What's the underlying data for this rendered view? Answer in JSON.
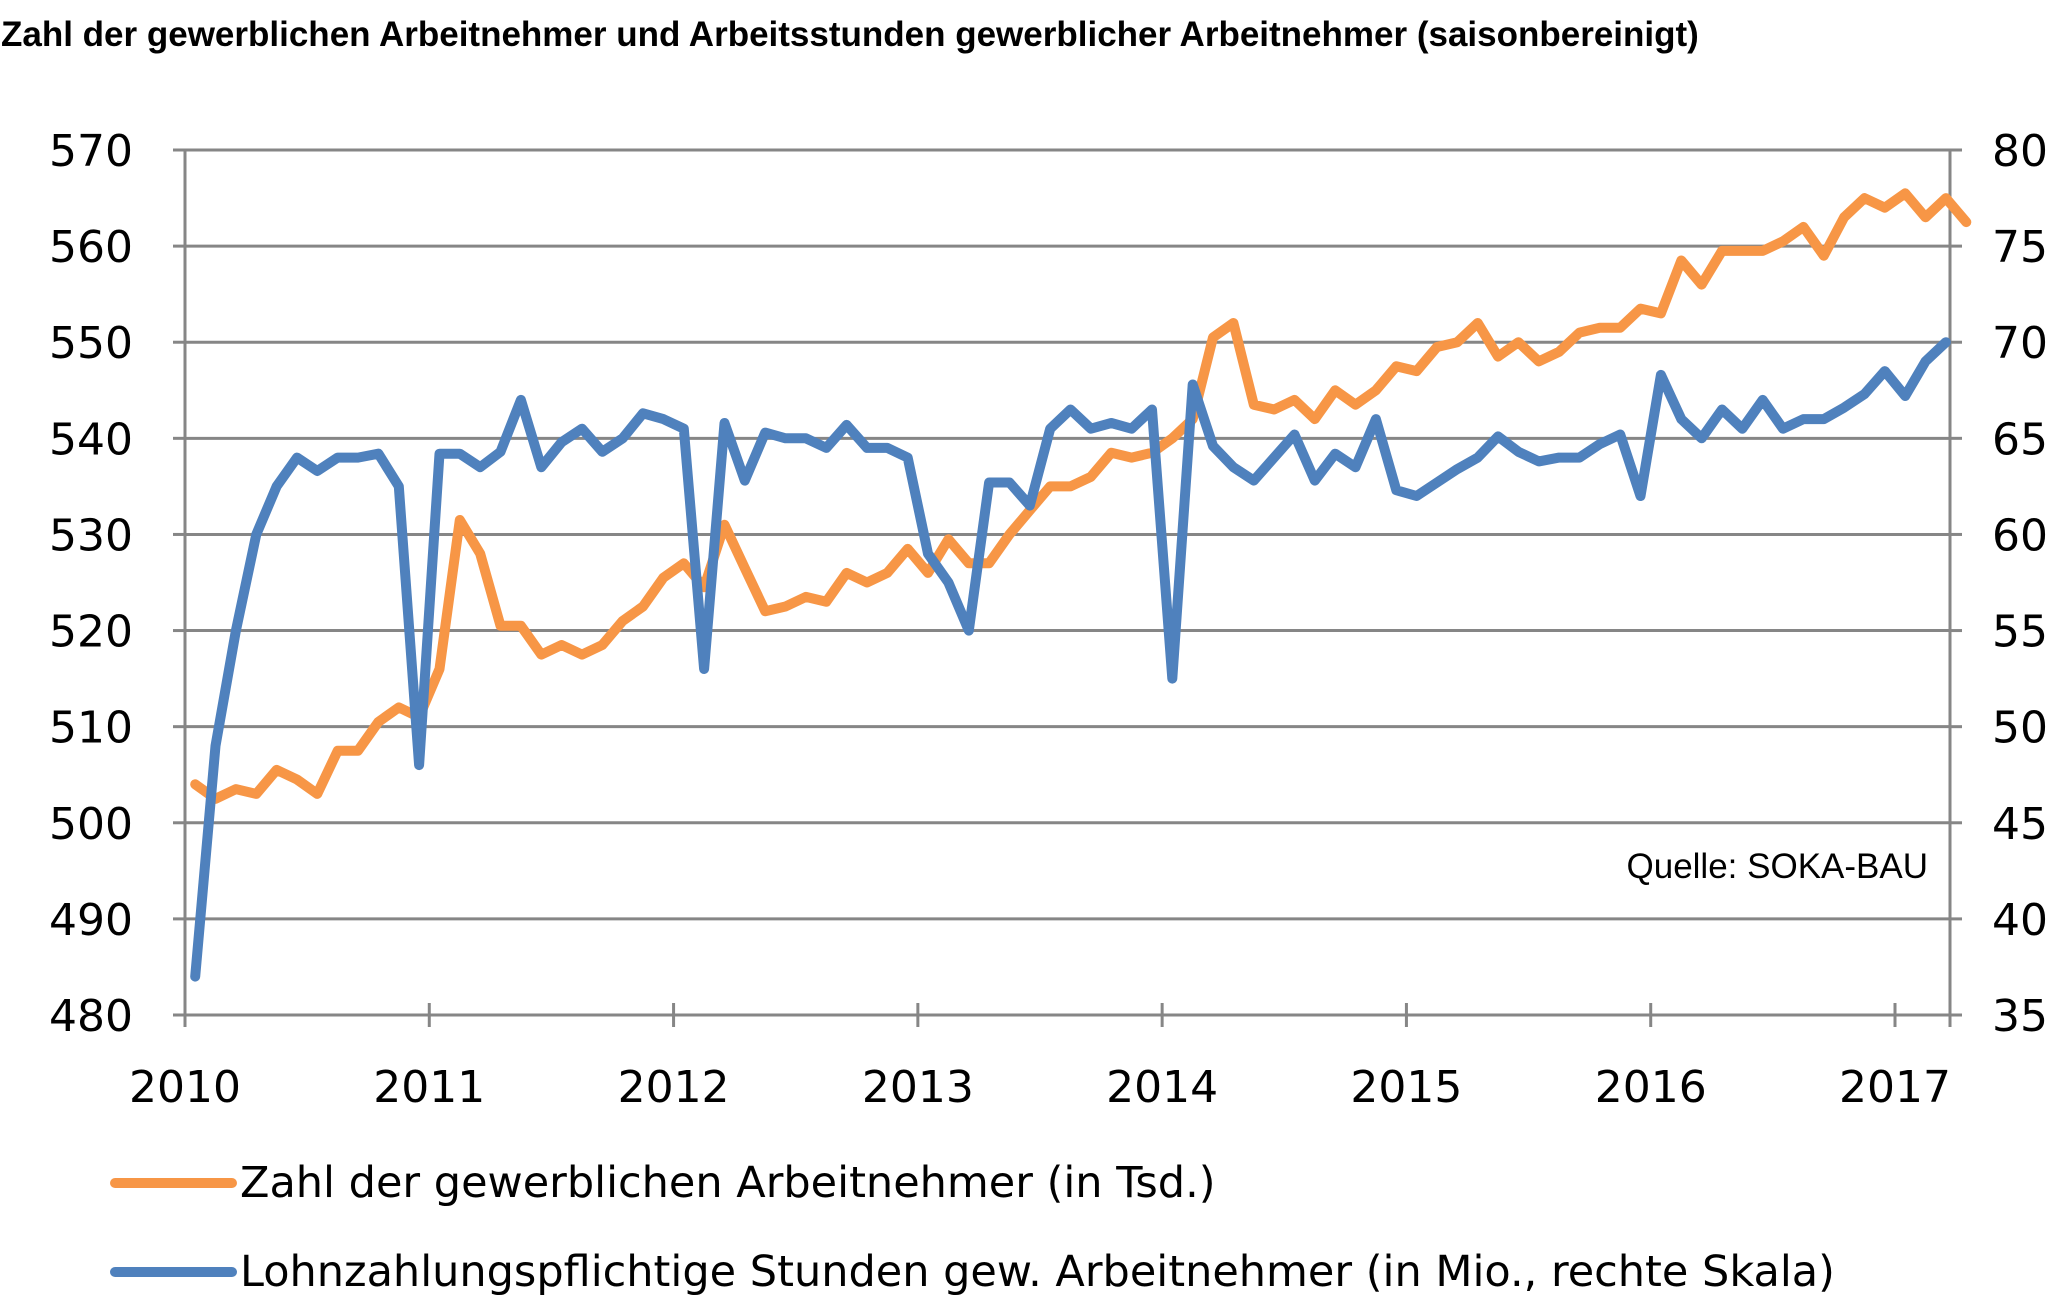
{
  "chart_data": {
    "type": "line",
    "title": "Zahl der gewerblichen Arbeitnehmer und Arbeitsstunden gewerblicher Arbeitnehmer (saisonbereinigt)",
    "source": "Quelle: SOKA-BAU",
    "x_start": "2010-01",
    "x_ticks": [
      "2010",
      "2011",
      "2012",
      "2013",
      "2014",
      "2015",
      "2016",
      "2017"
    ],
    "y_left": {
      "ticks": [
        "570",
        "560",
        "550",
        "540",
        "530",
        "520",
        "510",
        "500",
        "490",
        "480"
      ],
      "ylim": [
        480,
        570
      ]
    },
    "y_right": {
      "ticks": [
        "80",
        "75",
        "70",
        "65",
        "60",
        "55",
        "50",
        "45",
        "40",
        "35"
      ],
      "ylim": [
        35,
        80
      ]
    },
    "grid": true,
    "legend_position": "bottom",
    "series": [
      {
        "name": "Zahl der gewerblichen Arbeitnehmer (in Tsd.)",
        "axis": "left",
        "color": "#f79646",
        "values": [
          504,
          502.5,
          503.5,
          503,
          505.5,
          504.5,
          503,
          507.5,
          507.5,
          510.5,
          512,
          511,
          516,
          531.5,
          528,
          520.5,
          520.5,
          517.5,
          518.5,
          517.5,
          518.5,
          521,
          522.5,
          525.5,
          527,
          524.5,
          531,
          526.5,
          522,
          522.5,
          523.5,
          523,
          526,
          525,
          526,
          528.5,
          526,
          529.5,
          527,
          527,
          530,
          532.5,
          535,
          535,
          536,
          538.5,
          538,
          538.5,
          540,
          542,
          550.5,
          552,
          543.5,
          543,
          544,
          542,
          545,
          543.5,
          545,
          547.5,
          547,
          549.5,
          550,
          552,
          548.5,
          550,
          548,
          549,
          551,
          551.5,
          551.5,
          553.5,
          553,
          558.5,
          556,
          559.5,
          559.5,
          559.5,
          560.5,
          562,
          559,
          563,
          565,
          564,
          565.5,
          563,
          565,
          562.5
        ]
      },
      {
        "name": "Lohnzahlungspflichtige Stunden gew. Arbeitnehmer (in Mio., rechte Skala)",
        "axis": "right",
        "color": "#4f81bd",
        "values": [
          37,
          49,
          55,
          60,
          62.5,
          64,
          63.3,
          64,
          64,
          64.2,
          62.5,
          48,
          64.2,
          64.2,
          63.5,
          64.3,
          67,
          63.5,
          64.8,
          65.5,
          64.3,
          65,
          66.3,
          66,
          65.5,
          53,
          65.8,
          62.8,
          65.3,
          65,
          65,
          64.5,
          65.7,
          64.5,
          64.5,
          64,
          59,
          57.5,
          55,
          62.7,
          62.7,
          61.5,
          65.5,
          66.5,
          65.5,
          65.8,
          65.5,
          66.5,
          52.5,
          67.8,
          64.6,
          63.5,
          62.8,
          64,
          65.2,
          62.8,
          64.2,
          63.5,
          66,
          62.3,
          62,
          62.7,
          63.4,
          64,
          65.1,
          64.3,
          63.8,
          64,
          64,
          64.7,
          65.2,
          62,
          68.3,
          66,
          65,
          66.5,
          65.5,
          67,
          65.5,
          66,
          66,
          66.6,
          67.3,
          68.5,
          67.2,
          69,
          70
        ]
      }
    ]
  }
}
